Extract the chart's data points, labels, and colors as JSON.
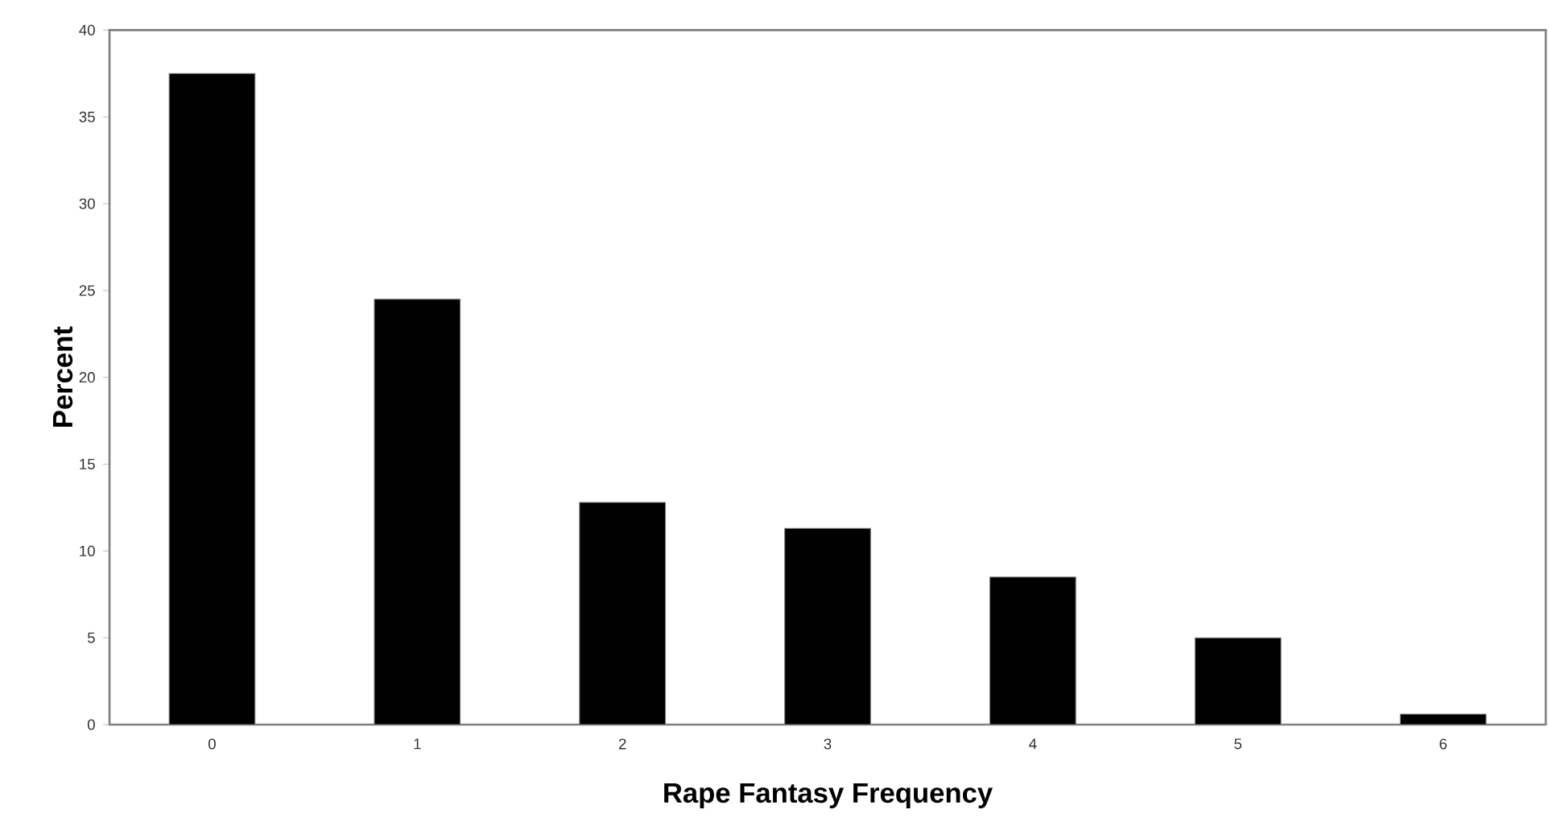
{
  "chart_data": {
    "type": "bar",
    "xlabel": "Rape Fantasy Frequency",
    "ylabel": "Percent",
    "categories": [
      "0",
      "1",
      "2",
      "3",
      "4",
      "5",
      "6"
    ],
    "values": [
      37.5,
      24.5,
      12.8,
      11.3,
      8.5,
      5.0,
      0.6
    ],
    "color": "#000000",
    "ylim": [
      0,
      40
    ],
    "yticks": [
      0,
      5,
      10,
      15,
      20,
      25,
      30,
      35,
      40
    ]
  }
}
